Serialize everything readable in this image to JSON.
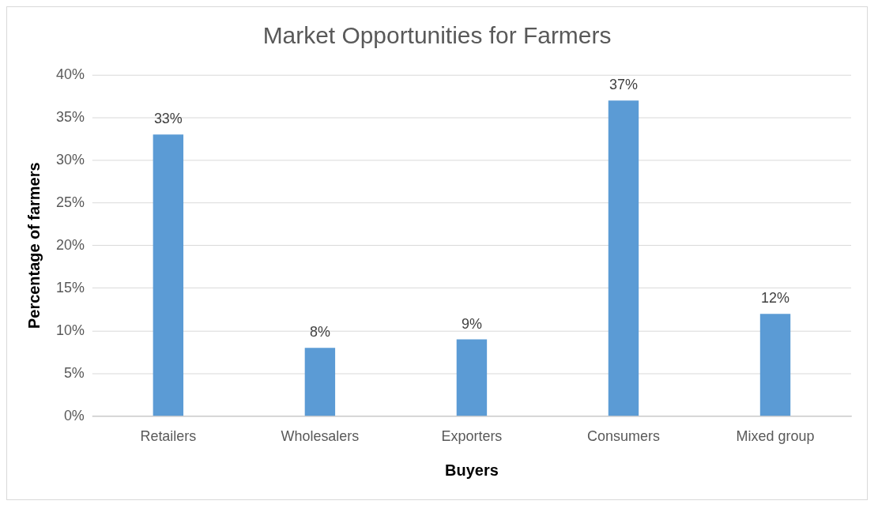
{
  "chart_data": {
    "type": "bar",
    "title": "Market Opportunities for Farmers",
    "xlabel": "Buyers",
    "ylabel": "Percentage of farmers",
    "categories": [
      "Retailers",
      "Wholesalers",
      "Exporters",
      "Consumers",
      "Mixed group"
    ],
    "values": [
      33,
      8,
      9,
      37,
      12
    ],
    "color": "#5b9bd5",
    "ylim": [
      0,
      40
    ],
    "yticks": [
      {
        "value": 0,
        "label": "0%"
      },
      {
        "value": 5,
        "label": "5%"
      },
      {
        "value": 10,
        "label": "10%"
      },
      {
        "value": 15,
        "label": "15%"
      },
      {
        "value": 20,
        "label": "20%"
      },
      {
        "value": 25,
        "label": "25%"
      },
      {
        "value": 30,
        "label": "30%"
      },
      {
        "value": 35,
        "label": "35%"
      },
      {
        "value": 40,
        "label": "40%"
      }
    ],
    "value_labels": [
      "33%",
      "8%",
      "9%",
      "37%",
      "12%"
    ],
    "grid": "y",
    "legend": false
  }
}
